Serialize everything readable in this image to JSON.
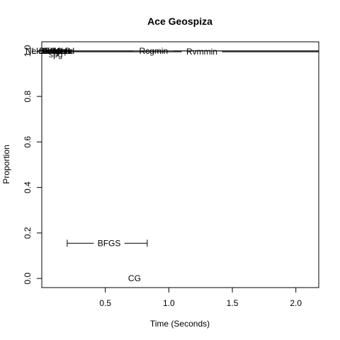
{
  "chart_data": {
    "type": "scatter",
    "title": "Ace Geospiza",
    "xlabel": "Time (Seconds)",
    "ylabel": "Proportion",
    "xlim": [
      0.0,
      2.18
    ],
    "ylim": [
      -0.04,
      1.04
    ],
    "xticks": [
      0.5,
      1.0,
      1.5,
      2.0
    ],
    "xtick_labels": [
      "0.5",
      "1.0",
      "1.5",
      "2.0"
    ],
    "yticks": [
      0.0,
      0.2,
      0.4,
      0.6,
      0.8,
      1.0
    ],
    "ytick_labels": [
      "0.0",
      "0.2",
      "0.4",
      "0.6",
      "0.8",
      "1.0"
    ],
    "grid": false,
    "reference_line": {
      "y": 1.0
    },
    "intervals": [
      {
        "label": "BFGS",
        "y": 0.155,
        "x": 0.53,
        "low": 0.2,
        "high": 0.83
      },
      {
        "label": "Rcgmin",
        "y": 1.0,
        "x": 0.88,
        "low": 0.03,
        "high": 2.18
      },
      {
        "label": "Rvmmin",
        "y": 0.996,
        "x": 1.26,
        "low": 0.03,
        "high": 2.18
      },
      {
        "label": "spg",
        "y": 0.984,
        "x": 0.11
      }
    ],
    "points": [
      {
        "label": "CG",
        "x": 0.73,
        "y": 0.0
      }
    ],
    "overlap_cluster": {
      "labels": [
        "Nelder-Mead",
        "L-BFGS-B",
        "nlm",
        "nlminb",
        "ucminf",
        "newuoa",
        "bobyqa",
        "Rcgmin"
      ],
      "x": 0.1,
      "y": 1.0
    }
  }
}
